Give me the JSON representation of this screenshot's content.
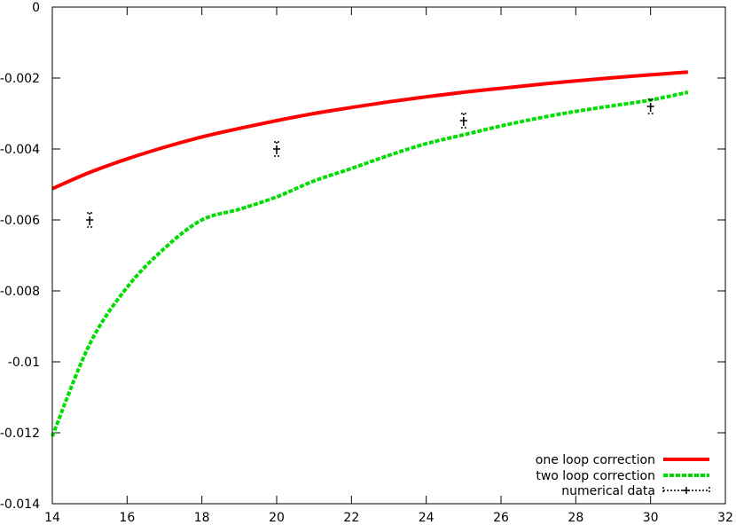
{
  "chart_data": {
    "type": "line",
    "title": "",
    "xlabel": "",
    "ylabel": "",
    "xlim": [
      14,
      32
    ],
    "ylim": [
      -0.014,
      0
    ],
    "xticks": [
      {
        "value": 14,
        "label": "14"
      },
      {
        "value": 16,
        "label": "16"
      },
      {
        "value": 18,
        "label": "18"
      },
      {
        "value": 20,
        "label": "20"
      },
      {
        "value": 22,
        "label": "22"
      },
      {
        "value": 24,
        "label": "24"
      },
      {
        "value": 26,
        "label": "26"
      },
      {
        "value": 28,
        "label": "28"
      },
      {
        "value": 30,
        "label": "30"
      },
      {
        "value": 32,
        "label": "32"
      }
    ],
    "yticks": [
      {
        "value": 0,
        "label": "0"
      },
      {
        "value": -0.002,
        "label": "-0.002"
      },
      {
        "value": -0.004,
        "label": "-0.004"
      },
      {
        "value": -0.006,
        "label": "-0.006"
      },
      {
        "value": -0.008,
        "label": "-0.008"
      },
      {
        "value": -0.01,
        "label": "-0.01"
      },
      {
        "value": -0.012,
        "label": "-0.012"
      },
      {
        "value": -0.014,
        "label": "-0.014"
      }
    ],
    "grid": false,
    "legend_position": "bottom-right",
    "series": [
      {
        "name": "one loop correction",
        "kind": "line",
        "style": "solid",
        "color": "#ff0000",
        "x": [
          14,
          15,
          16,
          17,
          18,
          19,
          20,
          21,
          22,
          23,
          24,
          25,
          26,
          27,
          28,
          29,
          30,
          31
        ],
        "y": [
          -0.00512,
          -0.00466,
          -0.00428,
          -0.00395,
          -0.00366,
          -0.00342,
          -0.0032,
          -0.003,
          -0.00283,
          -0.00267,
          -0.00253,
          -0.0024,
          -0.00229,
          -0.00218,
          -0.00208,
          -0.00199,
          -0.00191,
          -0.00183
        ]
      },
      {
        "name": "two loop correction",
        "kind": "line",
        "style": "dashed",
        "color": "#00dd00",
        "x": [
          14,
          15,
          16,
          17,
          18,
          19,
          20,
          21,
          22,
          23,
          24,
          25,
          26,
          27,
          28,
          29,
          30,
          31
        ],
        "y": [
          -0.0121,
          -0.0095,
          -0.0079,
          -0.0068,
          -0.006,
          -0.0057,
          -0.00535,
          -0.0049,
          -0.00455,
          -0.00418,
          -0.00385,
          -0.0036,
          -0.00335,
          -0.00313,
          -0.00294,
          -0.00278,
          -0.00262,
          -0.0024
        ]
      },
      {
        "name": "numerical data",
        "kind": "points_errorbars",
        "style": "dotted",
        "color": "#000000",
        "x": [
          15,
          20,
          25,
          30
        ],
        "y": [
          -0.006,
          -0.004,
          -0.0032,
          -0.0028
        ],
        "yerr": [
          0.0002,
          0.0002,
          0.0002,
          0.0002
        ]
      }
    ]
  }
}
